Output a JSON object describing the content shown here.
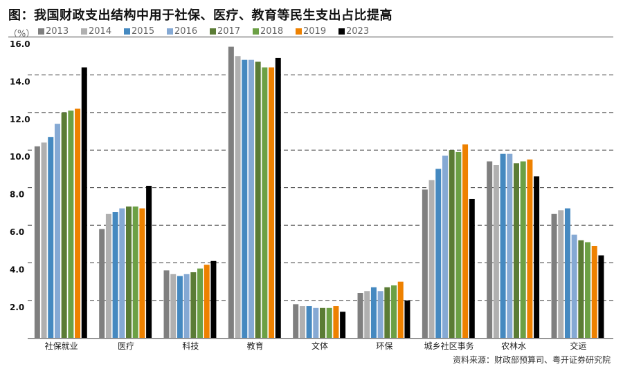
{
  "chart_data": {
    "type": "bar",
    "title": "图：我国财政支出结构中用于社保、医疗、教育等民生支出占比提高",
    "ylabel": "（%）",
    "ylim": [
      0,
      16
    ],
    "yticks": [
      "2.0",
      "4.0",
      "6.0",
      "8.0",
      "10.0",
      "12.0",
      "14.0",
      "16.0"
    ],
    "grid": true,
    "legend_position": "top",
    "categories": [
      "社保就业",
      "医疗",
      "科技",
      "教育",
      "文体",
      "环保",
      "城乡社区事务",
      "农林水",
      "交运"
    ],
    "series": [
      {
        "name": "2013",
        "color": "#7f7f7f",
        "values": [
          10.2,
          5.8,
          3.6,
          15.5,
          1.8,
          2.4,
          7.9,
          9.4,
          6.6
        ]
      },
      {
        "name": "2014",
        "color": "#b0b0b0",
        "values": [
          10.4,
          6.6,
          3.4,
          15.0,
          1.7,
          2.5,
          8.4,
          9.2,
          6.8
        ]
      },
      {
        "name": "2015",
        "color": "#4589c0",
        "values": [
          10.7,
          6.7,
          3.3,
          14.8,
          1.7,
          2.7,
          9.0,
          9.8,
          6.9
        ]
      },
      {
        "name": "2016",
        "color": "#85a9d4",
        "values": [
          11.4,
          6.9,
          3.4,
          14.8,
          1.6,
          2.5,
          9.7,
          9.8,
          5.5
        ]
      },
      {
        "name": "2017",
        "color": "#5b7c35",
        "values": [
          12.0,
          7.0,
          3.5,
          14.7,
          1.6,
          2.7,
          10.0,
          9.3,
          5.2
        ]
      },
      {
        "name": "2018",
        "color": "#6ca045",
        "values": [
          12.1,
          7.0,
          3.7,
          14.4,
          1.6,
          2.8,
          9.9,
          9.4,
          5.1
        ]
      },
      {
        "name": "2019",
        "color": "#ee8100",
        "values": [
          12.2,
          6.9,
          3.9,
          14.4,
          1.7,
          3.0,
          10.3,
          9.5,
          4.9
        ]
      },
      {
        "name": "2023",
        "color": "#000000",
        "values": [
          14.4,
          8.1,
          4.1,
          14.9,
          1.4,
          2.0,
          7.4,
          8.6,
          4.4
        ]
      }
    ]
  },
  "source": "资料来源：财政部预算司、粤开证券研究院"
}
